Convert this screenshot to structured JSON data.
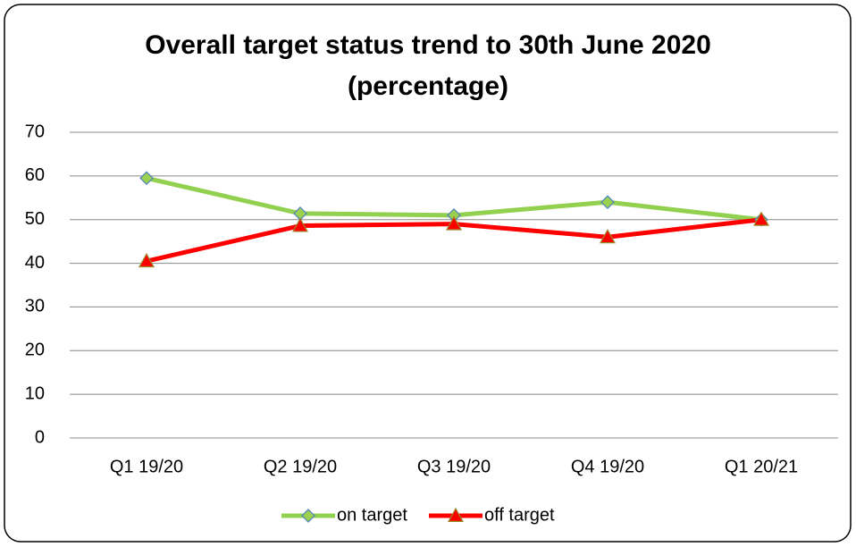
{
  "chart_data": {
    "type": "line",
    "title": "Overall target status trend to 30th June 2020 (percentage)",
    "categories": [
      "Q1 19/20",
      "Q2 19/20",
      "Q3 19/20",
      "Q4 19/20",
      "Q1 20/21"
    ],
    "series": [
      {
        "name": "on target",
        "color": "#92d050",
        "values": [
          59.5,
          51.4,
          51,
          54,
          50
        ]
      },
      {
        "name": "off target",
        "color": "#ff0000",
        "values": [
          40.5,
          48.6,
          49,
          46,
          50
        ]
      }
    ],
    "ylim": [
      0,
      70
    ],
    "yticks": [
      0,
      10,
      20,
      30,
      40,
      50,
      60,
      70
    ],
    "grid": true,
    "legend": "bottom"
  }
}
